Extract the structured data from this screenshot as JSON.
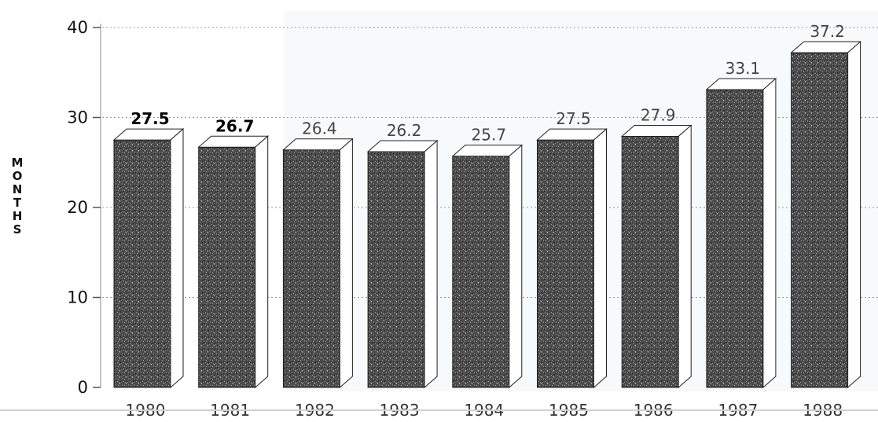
{
  "chart_data": {
    "type": "bar",
    "title": "",
    "xlabel": "",
    "ylabel": "MONTHS",
    "categories": [
      "1980",
      "1981",
      "1982",
      "1983",
      "1984",
      "1985",
      "1986",
      "1987",
      "1988"
    ],
    "values": [
      27.5,
      26.7,
      26.4,
      26.2,
      25.7,
      27.5,
      27.9,
      33.1,
      37.2
    ],
    "data_labels": [
      "27.5",
      "26.7",
      "26.4",
      "26.2",
      "25.7",
      "27.5",
      "27.9",
      "33.1",
      "37.2"
    ],
    "ylim": [
      0,
      40
    ],
    "yticks": [
      0,
      10,
      20,
      30,
      40
    ],
    "ytick_labels": [
      "0",
      "10",
      "20",
      "30",
      "40"
    ],
    "grid": true,
    "style": "3d",
    "colors": {
      "bar_face": "#4a4a4a",
      "bar_side": "#ffffff",
      "bar_outline": "#222222",
      "grid": "#9a9a9a",
      "text": "#111111",
      "background_panel": "#f7f9fb"
    }
  }
}
